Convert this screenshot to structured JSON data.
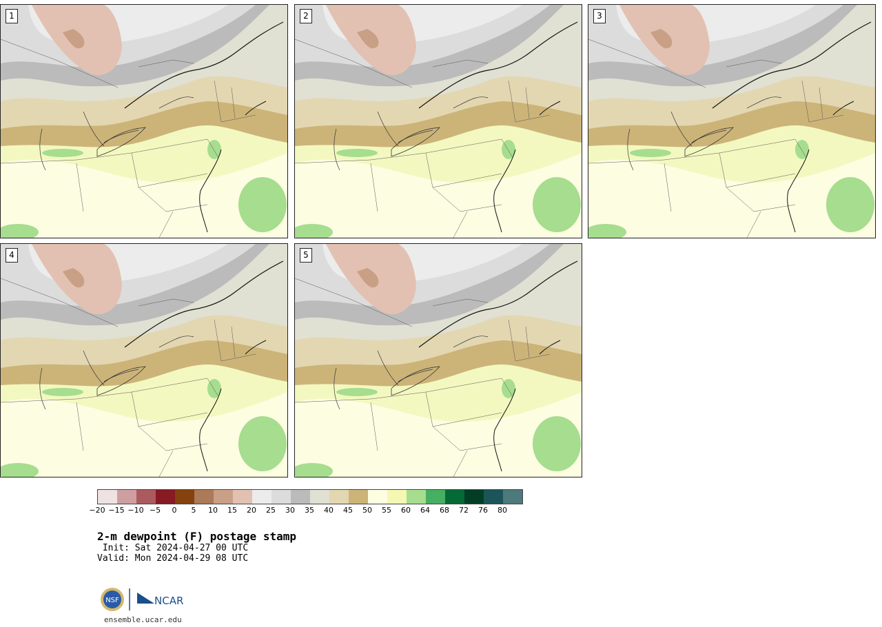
{
  "panels": [
    {
      "label": "1"
    },
    {
      "label": "2"
    },
    {
      "label": "3"
    },
    {
      "label": "4"
    },
    {
      "label": "5"
    }
  ],
  "colorbar": {
    "colors": [
      "#efe2e2",
      "#cf9ea0",
      "#ab5b60",
      "#881a23",
      "#85420f",
      "#ab7a58",
      "#c99f86",
      "#e2c1b3",
      "#ececec",
      "#dcdcdc",
      "#bbbbbb",
      "#e0e0d3",
      "#e3d7b2",
      "#ccb479",
      "#fdfde2",
      "#f5f8b4",
      "#a6dd8f",
      "#45af62",
      "#056a35",
      "#043d25",
      "#1c5559",
      "#4e7a7e"
    ],
    "ticks": [
      "−20",
      "−15",
      "−10",
      "−5",
      "0",
      "5",
      "10",
      "15",
      "20",
      "25",
      "30",
      "35",
      "40",
      "45",
      "50",
      "55",
      "60",
      "64",
      "68",
      "72",
      "76",
      "80"
    ]
  },
  "title": "2-m dewpoint (F) postage stamp",
  "init": " Init: Sat 2024-04-27 00 UTC",
  "valid": "Valid: Mon 2024-04-29 08 UTC",
  "footer_url": "ensemble.ucar.edu",
  "logo_text": {
    "nsf": "NSF",
    "ncar": "NCAR"
  }
}
